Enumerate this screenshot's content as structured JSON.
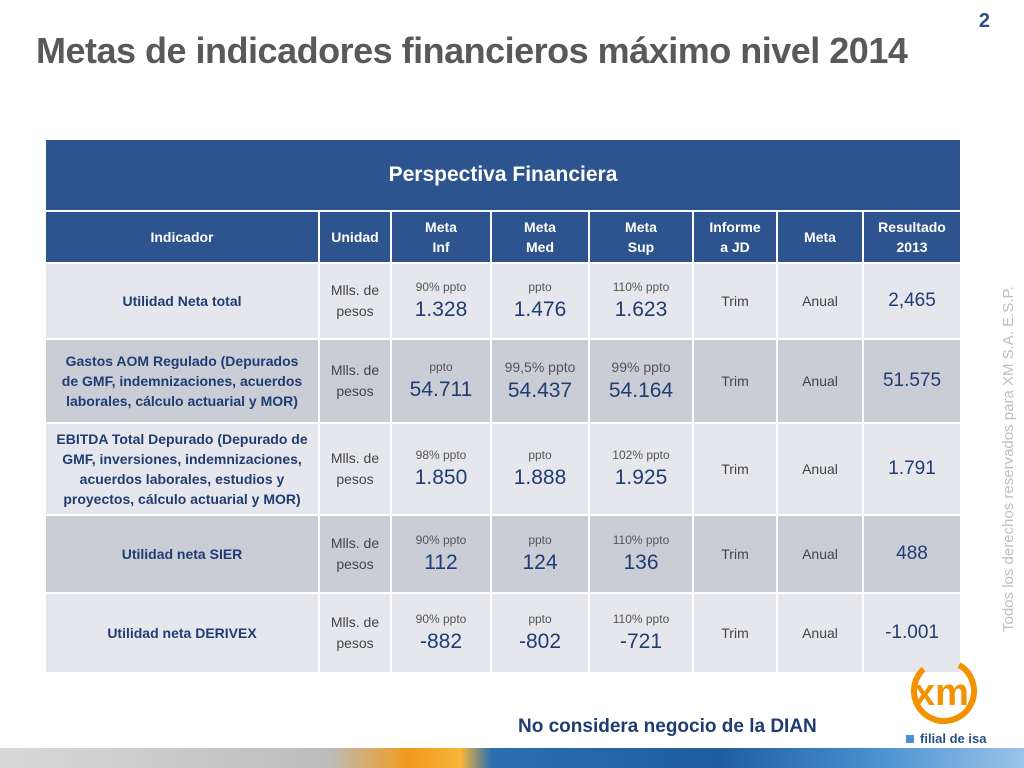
{
  "page_number": "2",
  "title": "Metas de indicadores financieros máximo nivel 2014",
  "side_note": "Todos los derechos reservados para XM S.A. E.S.P.",
  "table": {
    "perspective": "Perspectiva Financiera",
    "headers": {
      "indicador": "Indicador",
      "unidad": "Unidad",
      "meta_inf": [
        "Meta",
        "Inf"
      ],
      "meta_med": [
        "Meta",
        "Med"
      ],
      "meta_sup": [
        "Meta",
        "Sup"
      ],
      "informe": [
        "Informe",
        "a JD"
      ],
      "meta": "Meta",
      "resultado": [
        "Resultado",
        "2013"
      ]
    },
    "rows": [
      {
        "indicador": [
          "Utilidad Neta total"
        ],
        "unidad": [
          "Mlls. de",
          "pesos"
        ],
        "inf_label": "90% ppto",
        "inf_value": "1.328",
        "med_label": "ppto",
        "med_value": "1.476",
        "sup_label": "110% ppto",
        "sup_value": "1.623",
        "informe": "Trim",
        "meta": "Anual",
        "resultado": "2,465"
      },
      {
        "indicador": [
          "Gastos AOM  Regulado (Depurados",
          "de  GMF, indemnizaciones, acuerdos",
          "laborales, cálculo actuarial y MOR)"
        ],
        "unidad": [
          "Mlls. de",
          "pesos"
        ],
        "inf_label": "ppto",
        "inf_value": "54.711",
        "med_label": "99,5% ppto",
        "med_value": "54.437",
        "sup_label": "99% ppto",
        "sup_value": "54.164",
        "informe": "Trim",
        "meta": "Anual",
        "resultado": "51.575"
      },
      {
        "indicador": [
          "EBITDA Total Depurado (Depurado de",
          "GMF,   inversiones, indemnizaciones,",
          "acuerdos laborales, estudios y",
          "proyectos, cálculo actuarial y MOR)"
        ],
        "unidad": [
          "Mlls. de",
          "pesos"
        ],
        "inf_label": "98% ppto",
        "inf_value": "1.850",
        "med_label": "ppto",
        "med_value": "1.888",
        "sup_label": "102% ppto",
        "sup_value": "1.925",
        "informe": "Trim",
        "meta": "Anual",
        "resultado": "1.791"
      },
      {
        "indicador": [
          "Utilidad neta SIER"
        ],
        "unidad": [
          "Mlls. de",
          "pesos"
        ],
        "inf_label": "90% ppto",
        "inf_value": "112",
        "med_label": "ppto",
        "med_value": "124",
        "sup_label": "110% ppto",
        "sup_value": "136",
        "informe": "Trim",
        "meta": "Anual",
        "resultado": "488"
      },
      {
        "indicador": [
          "Utilidad neta DERIVEX"
        ],
        "unidad": [
          "Mlls. de",
          "pesos"
        ],
        "inf_label": "90% ppto",
        "inf_value": "-882",
        "med_label": "ppto",
        "med_value": "-802",
        "sup_label": "110% ppto",
        "sup_value": "-721",
        "informe": "Trim",
        "meta": "Anual",
        "resultado": "-1.001"
      }
    ]
  },
  "footnote": "No considera negocio de la DIAN",
  "logo": {
    "mark": "xm",
    "subtitle": "filial de isa",
    "colors": {
      "orange": "#f39200",
      "blue": "#2a4f86"
    }
  }
}
